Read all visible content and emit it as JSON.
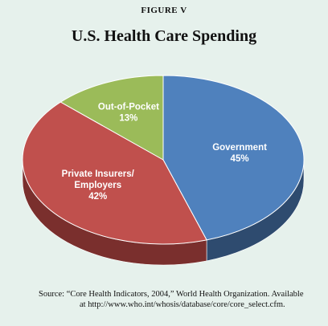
{
  "figure_label": "FIGURE V",
  "title": "U.S. Health Care Spending",
  "source_line1": "Source:  “Core Health Indicators, 2004,” World Health Organization.  Available",
  "source_line2": "at http://www.who.int/whosis/database/core/core_select.cfm.",
  "chart_data": {
    "type": "pie",
    "title": "U.S. Health Care Spending",
    "slices": [
      {
        "label_lines": [
          "Government",
          "45%"
        ],
        "value": 45,
        "color": "#4f81bd",
        "side_color": "#2e4b6f"
      },
      {
        "label_lines": [
          "Private Insurers/",
          "Employers",
          "42%"
        ],
        "value": 42,
        "color": "#c0504d",
        "side_color": "#7a2f2d"
      },
      {
        "label_lines": [
          "Out-of-Pocket",
          "13%"
        ],
        "value": 13,
        "color": "#9bbb59",
        "side_color": "#5f7535"
      }
    ],
    "legend": "none"
  }
}
